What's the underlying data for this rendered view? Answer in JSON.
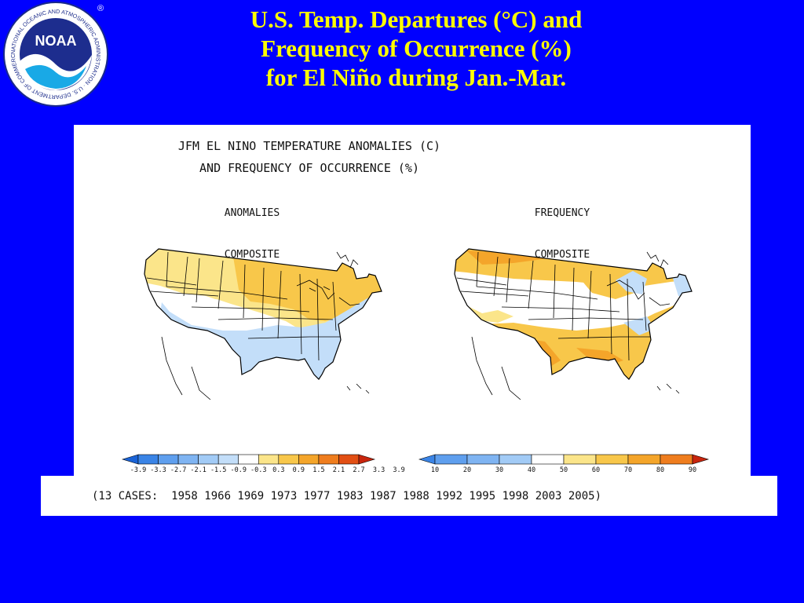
{
  "slide": {
    "title_lines": [
      "U.S. Temp. Departures (°C) and",
      "Frequency of Occurrence (%)",
      "for El Niño during Jan.-Mar."
    ]
  },
  "logo": {
    "ring_text": "NATIONAL OCEANIC AND ATMOSPHERIC ADMINISTRATION · U.S. DEPARTMENT OF COMMERCE",
    "inner_text": "NOAA",
    "registered": "®"
  },
  "figure": {
    "title_line1": "JFM EL NINO TEMPERATURE ANOMALIES (C)",
    "title_line2": "AND FREQUENCY OF OCCURRENCE (%)",
    "left_map": {
      "header": "ANOMALIES",
      "subheader": "COMPOSITE"
    },
    "right_map": {
      "header": "FREQUENCY",
      "subheader": "COMPOSITE"
    },
    "anomaly_scale": {
      "labels": [
        "-3.9",
        "-3.3",
        "-2.7",
        "-2.1",
        "-1.5",
        "-0.9",
        "-0.3",
        "0.3",
        "0.9",
        "1.5",
        "2.1",
        "2.7",
        "3.3",
        "3.9"
      ],
      "colors": [
        "#1a63d6",
        "#3a84e6",
        "#5f9fee",
        "#7fb4f2",
        "#a2cbf6",
        "#c3def9",
        "#ffffff",
        "#fbe58a",
        "#f8c74a",
        "#f4a52a",
        "#ef7d1e",
        "#e24f14",
        "#c8250d"
      ]
    },
    "frequency_scale": {
      "labels": [
        "10",
        "20",
        "30",
        "40",
        "50",
        "60",
        "70",
        "80",
        "90"
      ],
      "colors": [
        "#3a84e6",
        "#5f9fee",
        "#7fb4f2",
        "#a2cbf6",
        "#ffffff",
        "#fbe58a",
        "#f8c74a",
        "#f4a52a",
        "#ef7d1e",
        "#c8250d"
      ]
    },
    "cases": "(13 CASES:  1958 1966 1969 1973 1977 1983 1987 1988 1992 1995 1998 2003 2005)"
  }
}
